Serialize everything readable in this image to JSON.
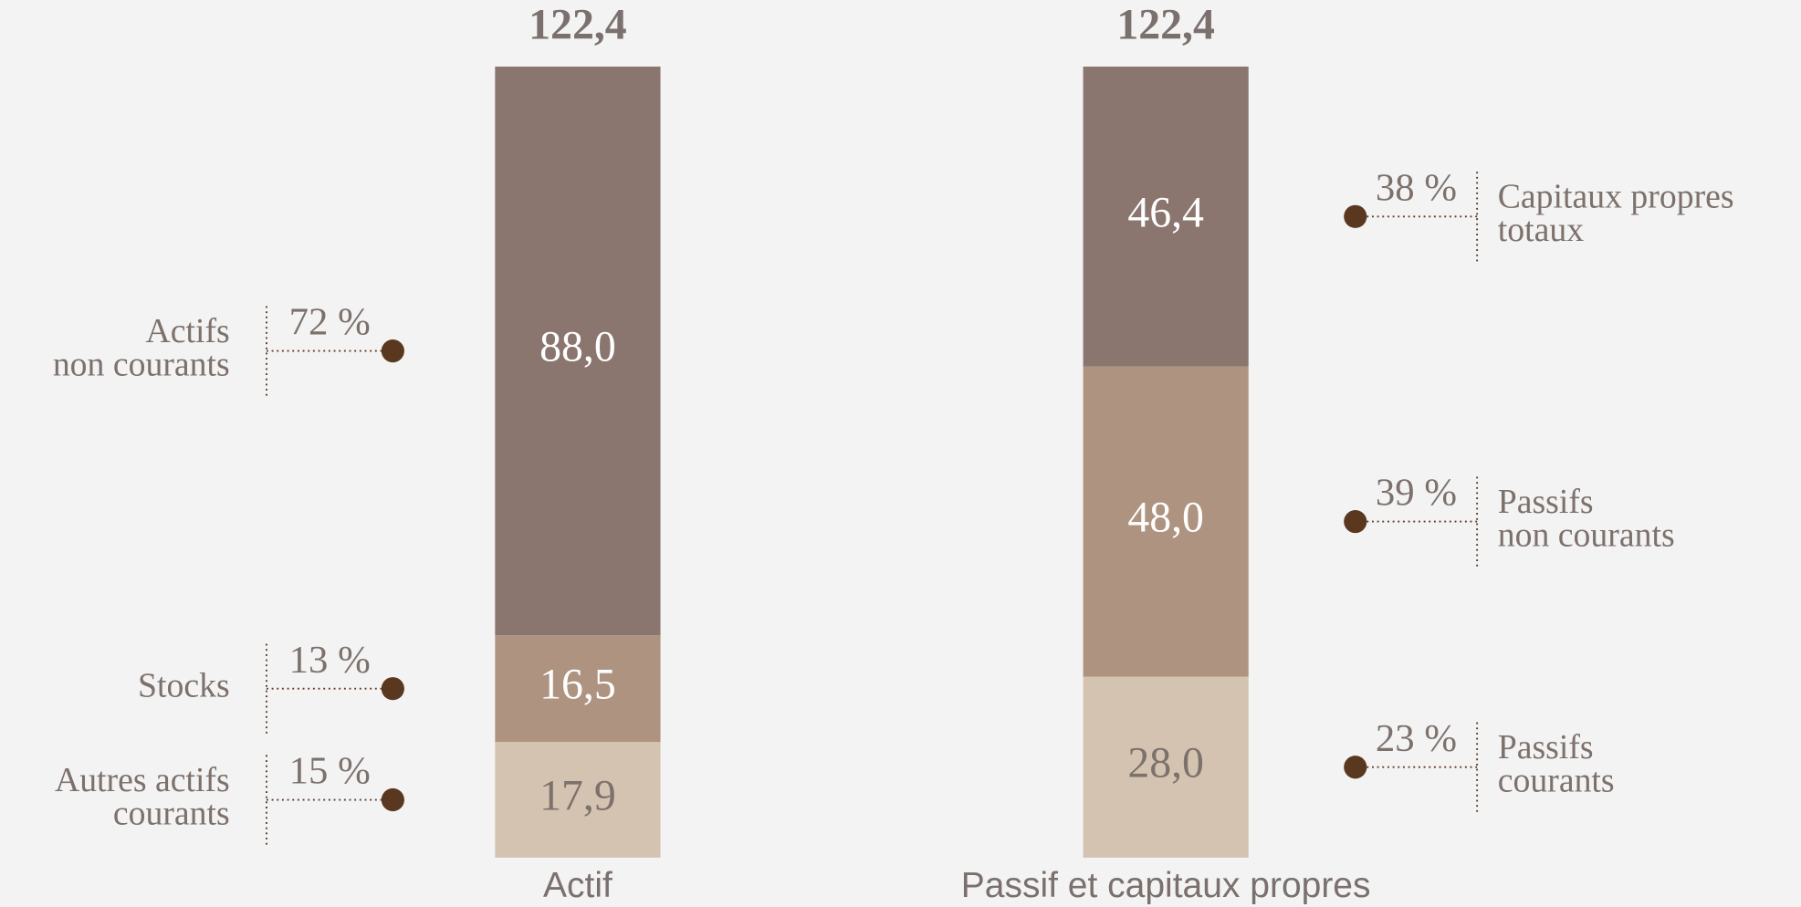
{
  "chart_data": {
    "type": "stacked-bar",
    "bars": [
      {
        "category": "Actif",
        "total": 122.4,
        "total_label": "122,4",
        "segments": [
          {
            "name": [
              "Autres actifs",
              "courants"
            ],
            "value": 17.9,
            "value_label": "17,9",
            "percent": 15,
            "percent_label": "15 %",
            "color": "#d3c3b0",
            "text_color": "#7d716c"
          },
          {
            "name": [
              "Stocks"
            ],
            "value": 16.5,
            "value_label": "16,5",
            "percent": 13,
            "percent_label": "13 %",
            "color": "#ae9480",
            "text_color": "#ffffff"
          },
          {
            "name": [
              "Actifs",
              "non courants"
            ],
            "value": 88.0,
            "value_label": "88,0",
            "percent": 72,
            "percent_label": "72 %",
            "color": "#8b766f",
            "text_color": "#ffffff"
          }
        ]
      },
      {
        "category": "Passif et capitaux propres",
        "total": 122.4,
        "total_label": "122,4",
        "segments": [
          {
            "name": [
              "Passifs",
              "courants"
            ],
            "value": 28.0,
            "value_label": "28,0",
            "percent": 23,
            "percent_label": "23 %",
            "color": "#d3c3b0",
            "text_color": "#7d716c"
          },
          {
            "name": [
              "Passifs",
              "non courants"
            ],
            "value": 48.0,
            "value_label": "48,0",
            "percent": 39,
            "percent_label": "39 %",
            "color": "#ae9480",
            "text_color": "#ffffff"
          },
          {
            "name": [
              "Capitaux propres",
              "totaux"
            ],
            "value": 46.4,
            "value_label": "46,4",
            "percent": 38,
            "percent_label": "38 %",
            "color": "#8b766f",
            "text_color": "#ffffff"
          }
        ]
      }
    ]
  }
}
